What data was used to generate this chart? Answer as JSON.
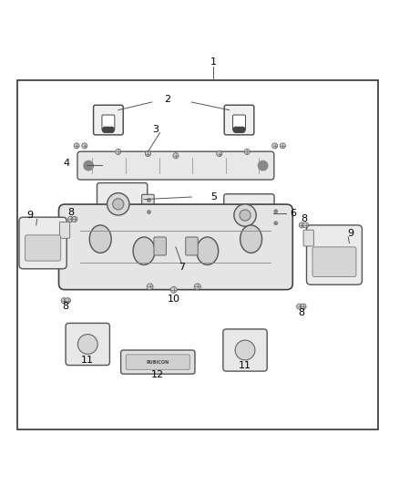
{
  "bg_color": "#ffffff",
  "border_color": "#333333",
  "line_color": "#555555",
  "text_color": "#000000",
  "figsize": [
    4.38,
    5.33
  ],
  "dpi": 100
}
